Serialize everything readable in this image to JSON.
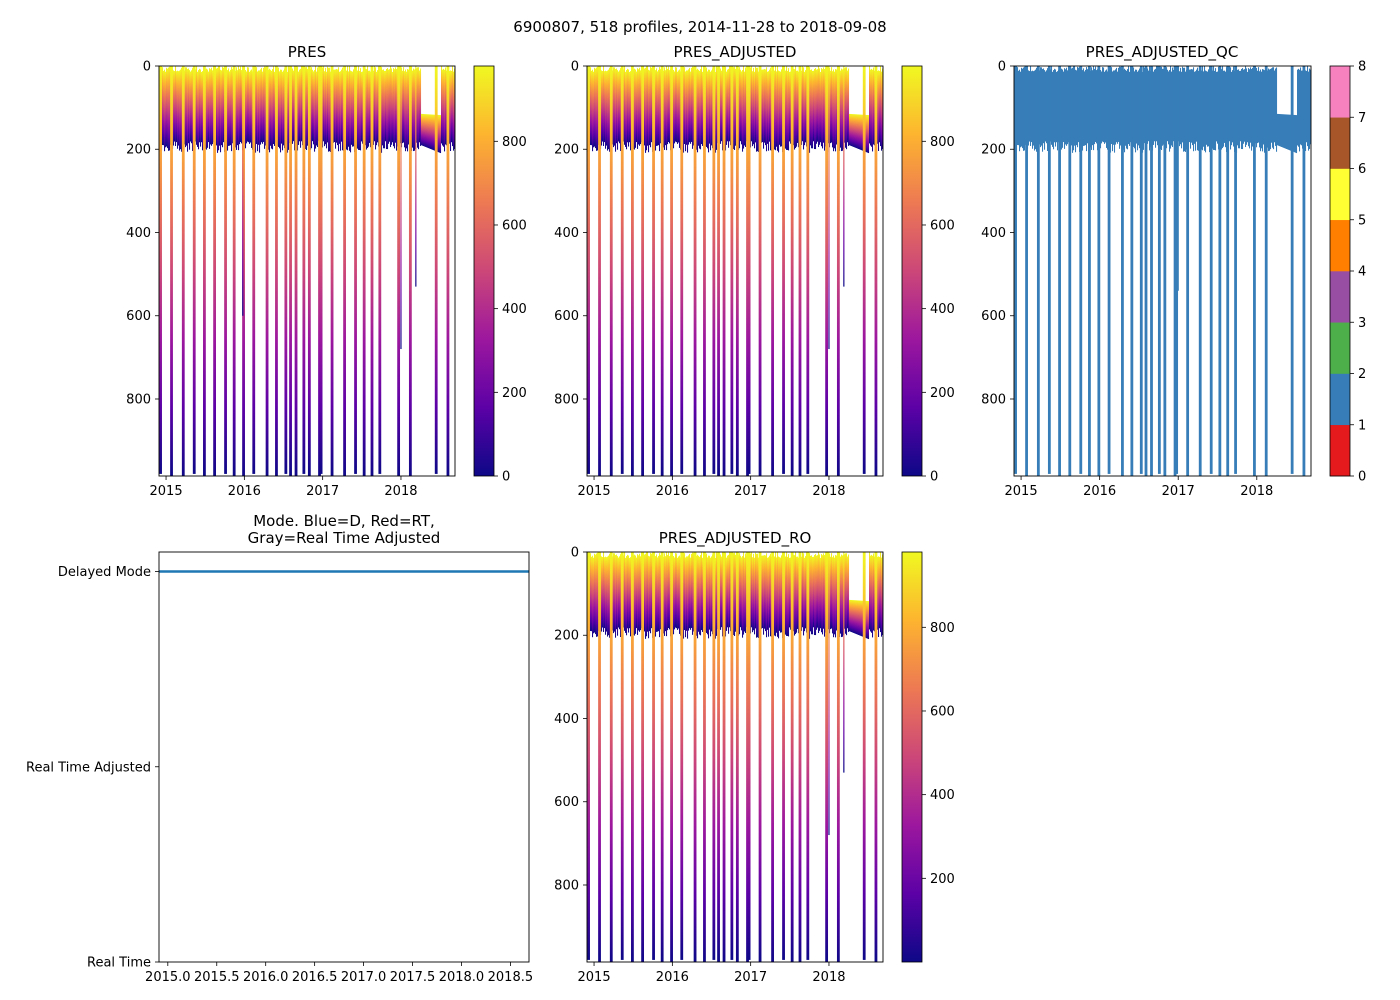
{
  "figure_title": "6900807, 518 profiles, 2014-11-28 to 2018-09-08",
  "colors": {
    "plasma": [
      "#f0f921",
      "#fdb42f",
      "#ed7953",
      "#cc4778",
      "#9c179e",
      "#5c01a6",
      "#0d0887"
    ],
    "qc": [
      "#e41a1c",
      "#377eb8",
      "#4daf4a",
      "#984ea3",
      "#ff7f00",
      "#ffff33",
      "#a65628",
      "#f781bf",
      "#999999"
    ],
    "mode_line": "#1f77b4",
    "qc_fill": "#377eb8"
  },
  "chart_data": [
    {
      "id": "pres",
      "type": "heatmap",
      "title": "PRES",
      "ylabel": "",
      "xlim": [
        2014.91,
        2018.69
      ],
      "ylim": [
        985,
        0
      ],
      "xticks": [
        2015,
        2016,
        2017,
        2018
      ],
      "xtick_labels": [
        "2015",
        "2016",
        "2017",
        "2018"
      ],
      "yticks": [
        0,
        200,
        400,
        600,
        800
      ],
      "ytick_labels": [
        "0",
        "200",
        "400",
        "600",
        "800"
      ],
      "colorbar": {
        "colormap": "plasma_r",
        "range": [
          0,
          980
        ],
        "ticks": [
          0,
          200,
          400,
          600,
          800
        ],
        "tick_labels": [
          "0",
          "200",
          "400",
          "600",
          "800"
        ]
      },
      "shallow_depth": 190,
      "deep_depth": 980,
      "deep_profile_years": [
        2014.93,
        2015.07,
        2015.22,
        2015.36,
        2015.49,
        2015.62,
        2015.76,
        2015.87,
        2015.99,
        2016.12,
        2016.29,
        2016.41,
        2016.53,
        2016.59,
        2016.66,
        2016.76,
        2016.83,
        2016.96,
        2016.98,
        2017.12,
        2017.28,
        2017.42,
        2017.53,
        2017.63,
        2017.73,
        2017.97,
        2018.12,
        2018.45,
        2018.6
      ],
      "partial_profiles": [
        {
          "year": 2015.98,
          "depth": 600
        },
        {
          "year": 2018.0,
          "depth": 680
        },
        {
          "year": 2018.19,
          "depth": 530
        }
      ],
      "anomaly": {
        "start_year": 2018.25,
        "end_year": 2018.5,
        "top_depth": 115
      }
    },
    {
      "id": "pres_adjusted",
      "type": "heatmap",
      "title": "PRES_ADJUSTED",
      "xlim": [
        2014.91,
        2018.69
      ],
      "ylim": [
        985,
        0
      ],
      "xticks": [
        2015,
        2016,
        2017,
        2018
      ],
      "xtick_labels": [
        "2015",
        "2016",
        "2017",
        "2018"
      ],
      "yticks": [
        0,
        200,
        400,
        600,
        800
      ],
      "ytick_labels": [
        "0",
        "200",
        "400",
        "600",
        "800"
      ],
      "colorbar": {
        "colormap": "plasma_r",
        "range": [
          0,
          980
        ],
        "ticks": [
          0,
          200,
          400,
          600,
          800
        ],
        "tick_labels": [
          "0",
          "200",
          "400",
          "600",
          "800"
        ]
      },
      "shallow_depth": 190,
      "deep_depth": 980,
      "deep_profile_years": [
        2014.93,
        2015.07,
        2015.22,
        2015.36,
        2015.49,
        2015.62,
        2015.76,
        2015.87,
        2015.99,
        2016.12,
        2016.29,
        2016.41,
        2016.53,
        2016.59,
        2016.66,
        2016.76,
        2016.83,
        2016.96,
        2016.98,
        2017.12,
        2017.28,
        2017.42,
        2017.53,
        2017.63,
        2017.73,
        2017.97,
        2018.12,
        2018.45,
        2018.6
      ],
      "partial_profiles": [
        {
          "year": 2018.0,
          "depth": 680
        },
        {
          "year": 2018.19,
          "depth": 530
        }
      ],
      "anomaly": {
        "start_year": 2018.25,
        "end_year": 2018.5,
        "top_depth": 115
      }
    },
    {
      "id": "pres_adjusted_qc",
      "type": "heatmap",
      "title": "PRES_ADJUSTED_QC",
      "xlim": [
        2014.91,
        2018.69
      ],
      "ylim": [
        985,
        0
      ],
      "xticks": [
        2015,
        2016,
        2017,
        2018
      ],
      "xtick_labels": [
        "2015",
        "2016",
        "2017",
        "2018"
      ],
      "yticks": [
        0,
        200,
        400,
        600,
        800
      ],
      "ytick_labels": [
        "0",
        "200",
        "400",
        "600",
        "800"
      ],
      "qc_value": 1,
      "colorbar": {
        "colormap": "qc",
        "range": [
          0,
          8
        ],
        "ticks": [
          0,
          1,
          2,
          3,
          4,
          5,
          6,
          7,
          8
        ],
        "tick_labels": [
          "0",
          "1",
          "2",
          "3",
          "4",
          "5",
          "6",
          "7",
          "8"
        ]
      },
      "shallow_depth": 190,
      "deep_depth": 980,
      "deep_profile_years": [
        2014.93,
        2015.07,
        2015.22,
        2015.36,
        2015.49,
        2015.62,
        2015.76,
        2015.87,
        2015.99,
        2016.12,
        2016.29,
        2016.41,
        2016.53,
        2016.59,
        2016.66,
        2016.76,
        2016.83,
        2016.96,
        2016.98,
        2017.12,
        2017.28,
        2017.42,
        2017.53,
        2017.63,
        2017.73,
        2017.97,
        2018.12,
        2018.45,
        2018.6
      ],
      "partial_profiles": [
        {
          "year": 2017.0,
          "depth": 540
        }
      ],
      "anomaly": {
        "start_year": 2018.25,
        "end_year": 2018.5,
        "top_depth": 115
      }
    },
    {
      "id": "mode",
      "type": "line",
      "title_lines": [
        "Mode. Blue=D, Red=RT,",
        "Gray=Real Time Adjusted"
      ],
      "xlim": [
        2014.91,
        2018.69
      ],
      "xticks": [
        2015.0,
        2015.5,
        2016.0,
        2016.5,
        2017.0,
        2017.5,
        2018.0,
        2018.5
      ],
      "xtick_labels": [
        "2015.0",
        "2015.5",
        "2016.0",
        "2016.5",
        "2017.0",
        "2017.5",
        "2018.0",
        "2018.5"
      ],
      "ylim": [
        0,
        2.1
      ],
      "yticks": [
        0,
        1,
        2
      ],
      "ytick_labels": [
        "Real Time",
        "Real Time Adjusted",
        "Delayed Mode"
      ],
      "series": [
        {
          "name": "Delayed Mode",
          "x": [
            2014.91,
            2018.69
          ],
          "y": [
            2,
            2
          ]
        }
      ]
    },
    {
      "id": "pres_adjusted_ro",
      "type": "heatmap",
      "title": "PRES_ADJUSTED_RO",
      "xlim": [
        2014.91,
        2018.69
      ],
      "ylim": [
        985,
        0
      ],
      "xticks": [
        2015,
        2016,
        2017,
        2018
      ],
      "xtick_labels": [
        "2015",
        "2016",
        "2017",
        "2018"
      ],
      "yticks": [
        0,
        200,
        400,
        600,
        800
      ],
      "ytick_labels": [
        "0",
        "200",
        "400",
        "600",
        "800"
      ],
      "colorbar": {
        "colormap": "plasma_r",
        "range": [
          0,
          980
        ],
        "ticks": [
          200,
          400,
          600,
          800
        ],
        "tick_labels": [
          "200",
          "400",
          "600",
          "800"
        ]
      },
      "shallow_depth": 190,
      "deep_depth": 980,
      "deep_profile_years": [
        2014.93,
        2015.07,
        2015.22,
        2015.36,
        2015.49,
        2015.62,
        2015.76,
        2015.87,
        2015.99,
        2016.12,
        2016.29,
        2016.41,
        2016.53,
        2016.59,
        2016.66,
        2016.76,
        2016.83,
        2016.96,
        2016.98,
        2017.12,
        2017.28,
        2017.42,
        2017.53,
        2017.63,
        2017.73,
        2017.97,
        2018.12,
        2018.45,
        2018.6
      ],
      "partial_profiles": [
        {
          "year": 2018.0,
          "depth": 680
        },
        {
          "year": 2018.19,
          "depth": 530
        }
      ],
      "anomaly": {
        "start_year": 2018.25,
        "end_year": 2018.5,
        "top_depth": 115
      }
    }
  ]
}
